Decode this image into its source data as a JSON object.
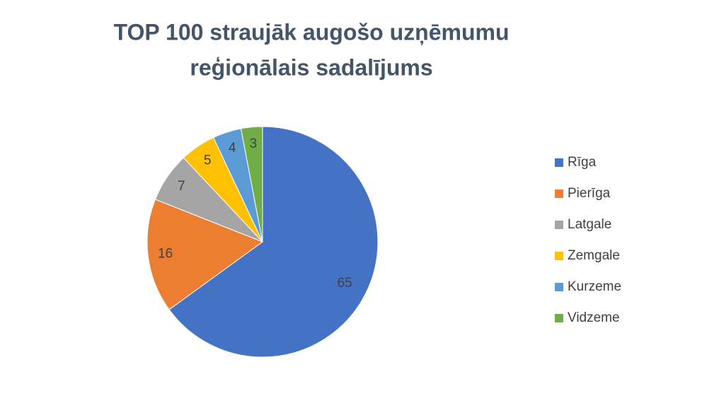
{
  "chart_data": {
    "type": "pie",
    "title": [
      "TOP 100 straujāk augošo uzņēmumu",
      "reģionālais sadalījums"
    ],
    "categories": [
      "Rīga",
      "Pierīga",
      "Latgale",
      "Zemgale",
      "Kurzeme",
      "Vidzeme"
    ],
    "values": [
      65,
      16,
      7,
      5,
      4,
      3
    ],
    "colors": [
      "#4472c4",
      "#ed7d31",
      "#a5a5a5",
      "#ffc000",
      "#5b9bd5",
      "#70ad47"
    ],
    "legend": "right"
  }
}
